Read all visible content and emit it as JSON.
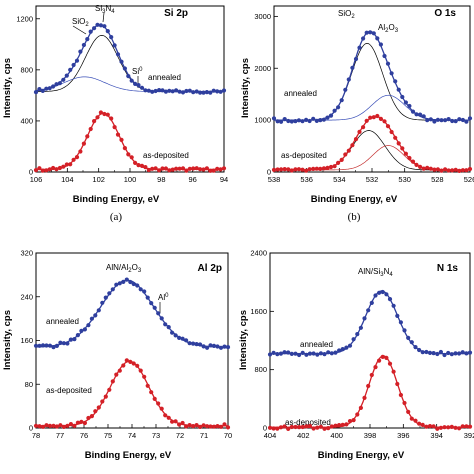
{
  "captions": [
    "(a)",
    "(b)"
  ],
  "chart_data": [
    {
      "type": "scatter",
      "title": "Si 2p",
      "xlabel": "Binding Energy, eV",
      "ylabel": "Intensity, cps",
      "xlim": [
        106,
        94
      ],
      "ylim": [
        0,
        1300
      ],
      "xticks": [
        "106",
        "104",
        "102",
        "100",
        "98",
        "96",
        "94"
      ],
      "yticks": [
        "0",
        "400",
        "800",
        "1200"
      ],
      "series": [
        {
          "name": "annealed",
          "baseline": 630,
          "peaks": [
            {
              "center": 101.8,
              "amp": 440,
              "width": 1.05
            },
            {
              "center": 102.9,
              "amp": 115,
              "width": 1.3
            }
          ]
        },
        {
          "name": "as-deposited",
          "baseline": 20,
          "peaks": [
            {
              "center": 101.7,
              "amp": 440,
              "width": 1.0
            }
          ]
        }
      ],
      "annotations": [
        "SiO₂",
        "Si₃N₄",
        "Si⁰",
        "annealed",
        "as-deposited"
      ]
    },
    {
      "type": "scatter",
      "title": "O 1s",
      "xlabel": "Binding Energy, eV",
      "ylabel": "Intensity, cps",
      "xlim": [
        538,
        526
      ],
      "ylim": [
        0,
        3200
      ],
      "xticks": [
        "538",
        "536",
        "534",
        "532",
        "530",
        "528",
        "526"
      ],
      "yticks": [
        "0",
        "1000",
        "2000",
        "3000"
      ],
      "series": [
        {
          "name": "annealed",
          "baseline": 1000,
          "peaks": [
            {
              "center": 532.3,
              "amp": 1480,
              "width": 0.95
            },
            {
              "center": 531.0,
              "amp": 480,
              "width": 1.0
            }
          ]
        },
        {
          "name": "as-deposited",
          "baseline": 40,
          "peaks": [
            {
              "center": 532.2,
              "amp": 760,
              "width": 1.0
            },
            {
              "center": 531.0,
              "amp": 470,
              "width": 0.95
            }
          ]
        }
      ],
      "annotations": [
        "SiO₂",
        "Al₂O₃",
        "annealed",
        "as-deposited"
      ]
    },
    {
      "type": "scatter",
      "title": "Al 2p",
      "xlabel": "Binding Energy, eV",
      "ylabel": "Intensity, cps",
      "xlim": [
        78,
        70
      ],
      "ylim": [
        0,
        320
      ],
      "xticks": [
        "78",
        "77",
        "76",
        "75",
        "74",
        "73",
        "72",
        "71",
        "70"
      ],
      "yticks": [
        "0",
        "80",
        "160",
        "240",
        "320"
      ],
      "series": [
        {
          "name": "annealed",
          "baseline": 148,
          "peaks": [
            {
              "center": 74.2,
              "amp": 122,
              "width": 1.1
            }
          ]
        },
        {
          "name": "as-deposited",
          "baseline": 4,
          "peaks": [
            {
              "center": 74.1,
              "amp": 118,
              "width": 0.8
            }
          ]
        }
      ],
      "annotations": [
        "AlN/Al₂O₃",
        "Al⁰",
        "annealed",
        "as-deposited"
      ]
    },
    {
      "type": "scatter",
      "title": "N 1s",
      "xlabel": "Binding Energy, eV",
      "ylabel": "Intensity, cps",
      "xlim": [
        404,
        392
      ],
      "ylim": [
        0,
        2400
      ],
      "xticks": [
        "404",
        "402",
        "400",
        "398",
        "396",
        "394",
        "392"
      ],
      "yticks": [
        "0",
        "800",
        "1600",
        "2400"
      ],
      "series": [
        {
          "name": "annealed",
          "baseline": 1020,
          "peaks": [
            {
              "center": 397.3,
              "amp": 860,
              "width": 0.95
            }
          ]
        },
        {
          "name": "as-deposited",
          "baseline": 10,
          "peaks": [
            {
              "center": 397.2,
              "amp": 980,
              "width": 0.85
            }
          ]
        }
      ],
      "annotations": [
        "AlN/Si₃N₄",
        "annealed",
        "as-deposited"
      ]
    }
  ],
  "colors": {
    "annealed": "#2f3f9e",
    "deposited": "#d42027",
    "fitDark": "#000000",
    "fitBlue": "#3a4fb8",
    "fitRed": "#c43030"
  }
}
